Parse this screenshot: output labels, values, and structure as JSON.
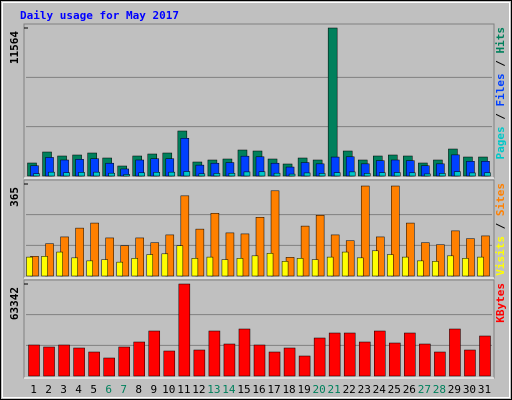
{
  "chart_data": {
    "type": "bar",
    "title": "Daily usage for May 2017",
    "categories": [
      "1",
      "2",
      "3",
      "4",
      "5",
      "6",
      "7",
      "8",
      "9",
      "10",
      "11",
      "12",
      "13",
      "14",
      "15",
      "16",
      "17",
      "18",
      "19",
      "20",
      "21",
      "22",
      "23",
      "24",
      "25",
      "26",
      "27",
      "28",
      "29",
      "30",
      "31"
    ],
    "category_colors": [
      "#000000",
      "#000000",
      "#000000",
      "#000000",
      "#000000",
      "#00805c",
      "#00805c",
      "#000000",
      "#000000",
      "#000000",
      "#000000",
      "#000000",
      "#00805c",
      "#00805c",
      "#000000",
      "#000000",
      "#000000",
      "#000000",
      "#000000",
      "#00805c",
      "#00805c",
      "#000000",
      "#000000",
      "#000000",
      "#000000",
      "#000000",
      "#00805c",
      "#00805c",
      "#000000",
      "#000000",
      "#000000"
    ],
    "panels": [
      {
        "ylim": [
          0,
          11564
        ],
        "yticks": [
          11564
        ],
        "series": [
          {
            "name": "Hits",
            "color": "#00805c",
            "values": [
              1016,
              1875,
              1563,
              1641,
              1797,
              1406,
              781,
              1563,
              1719,
              1797,
              3516,
              1094,
              1250,
              1328,
              2031,
              1953,
              1328,
              938,
              1406,
              1250,
              11564,
              1953,
              1250,
              1563,
              1641,
              1563,
              1016,
              1250,
              2109,
              1484,
              1484
            ]
          },
          {
            "name": "Files",
            "color": "#0040ff",
            "values": [
              800,
              1450,
              1250,
              1300,
              1350,
              1000,
              550,
              1250,
              1350,
              1350,
              2950,
              850,
              1000,
              1050,
              1550,
              1500,
              1000,
              700,
              1050,
              950,
              1480,
              1500,
              950,
              1200,
              1250,
              1200,
              800,
              950,
              1650,
              1150,
              1150
            ]
          },
          {
            "name": "Pages",
            "color": "#00c8c8",
            "values": [
              180,
              300,
              260,
              280,
              300,
              220,
              120,
              250,
              290,
              300,
              350,
              170,
              200,
              210,
              320,
              330,
              220,
              150,
              240,
              200,
              260,
              320,
              200,
              260,
              270,
              250,
              160,
              200,
              340,
              240,
              250
            ]
          }
        ]
      },
      {
        "ylim": [
          0,
          365
        ],
        "yticks": [
          365
        ],
        "series": [
          {
            "name": "Sites",
            "color": "#ff8000",
            "values": [
              78,
              128,
              155,
              190,
              210,
              151,
              120,
              151,
              132,
              163,
              318,
              186,
              249,
              171,
              167,
              233,
              338,
              74,
              198,
              241,
              163,
              140,
              357,
              155,
              357,
              210,
              132,
              124,
              179,
              148,
              159
            ]
          },
          {
            "name": "Visits",
            "color": "#ffff00",
            "values": [
              75,
              78,
              95,
              72,
              60,
              65,
              55,
              70,
              85,
              88,
              120,
              70,
              75,
              65,
              70,
              80,
              90,
              58,
              70,
              65,
              75,
              95,
              72,
              100,
              85,
              75,
              60,
              58,
              80,
              70,
              75
            ]
          }
        ]
      },
      {
        "ylim": [
          0,
          63342
        ],
        "yticks": [
          63342
        ],
        "series": [
          {
            "name": "KBytes",
            "color": "#ff0000",
            "values": [
              21344,
              19967,
              21344,
              19278,
              16524,
              12393,
              19967,
              23409,
              30982,
              17213,
              63342,
              17901,
              30982,
              22032,
              32360,
              21344,
              16524,
              19278,
              13770,
              26163,
              29606,
              29606,
              23409,
              30982,
              22721,
              29606,
              22032,
              16524,
              32360,
              17901,
              27541
            ]
          }
        ]
      }
    ]
  }
}
